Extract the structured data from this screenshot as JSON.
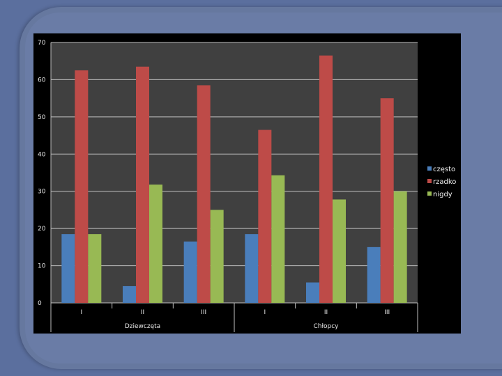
{
  "chart_data": {
    "type": "bar",
    "title": "",
    "xlabel": "",
    "ylabel": "",
    "ylim": [
      0,
      70
    ],
    "yticks": [
      0,
      10,
      20,
      30,
      40,
      50,
      60,
      70
    ],
    "grid": true,
    "legend_position": "right",
    "groups": [
      {
        "label": "Dziewczęta",
        "categories": [
          "I",
          "II",
          "III"
        ]
      },
      {
        "label": "Chłopcy",
        "categories": [
          "I",
          "II",
          "III"
        ]
      }
    ],
    "categories": [
      "I",
      "II",
      "III",
      "I",
      "II",
      "III"
    ],
    "series": [
      {
        "name": "często",
        "color": "#4a7ebb",
        "values": [
          18.5,
          4.5,
          16.5,
          18.5,
          5.5,
          15
        ]
      },
      {
        "name": "rzadko",
        "color": "#be4b48",
        "values": [
          62.5,
          63.5,
          58.5,
          46.5,
          66.5,
          55
        ]
      },
      {
        "name": "nigdy",
        "color": "#98b954",
        "values": [
          18.5,
          31.8,
          25,
          34.3,
          27.8,
          30
        ]
      }
    ]
  },
  "colors": {
    "plot_background": "#404040",
    "gridline": "#bfbfbf"
  }
}
